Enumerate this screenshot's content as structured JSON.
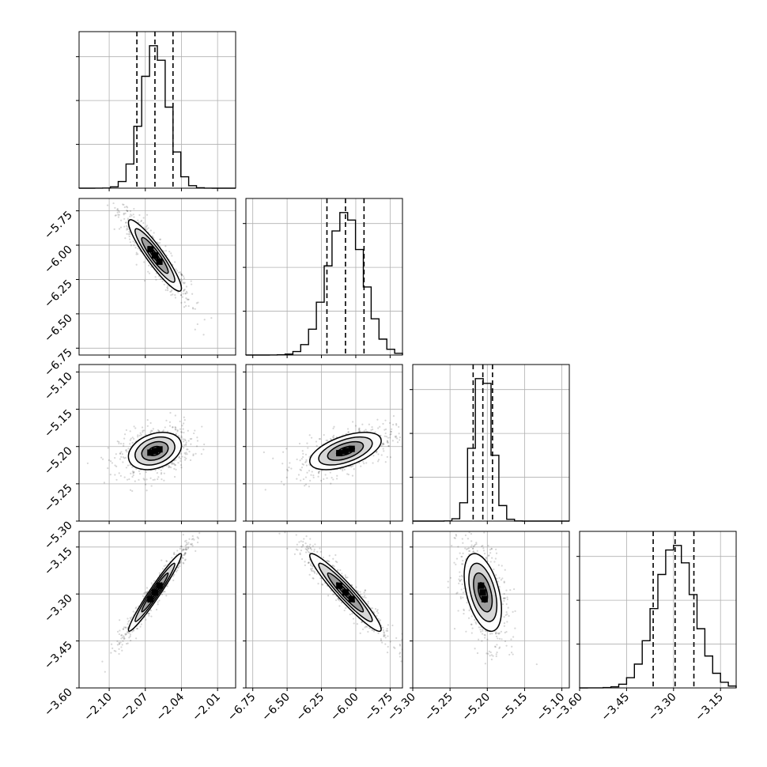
{
  "chart_data": {
    "type": "corner",
    "parameters": [
      {
        "range": [
          -2.125,
          -1.995
        ],
        "ticks": [
          -2.1,
          -2.07,
          -2.04,
          -2.01
        ],
        "tick_labels": [
          "−2.10",
          "−2.07",
          "−2.04",
          "−2.01"
        ],
        "quantiles": [
          -2.077,
          -2.062,
          -2.047
        ],
        "mean": -2.062,
        "sd": 0.011
      },
      {
        "range": [
          -6.8,
          -5.66
        ],
        "ticks": [
          -6.75,
          -6.5,
          -6.25,
          -6.0,
          -5.75
        ],
        "tick_labels": [
          "−6.75",
          "−6.50",
          "−6.25",
          "−6.00",
          "−5.75"
        ],
        "quantiles": [
          -6.21,
          -6.075,
          -5.94
        ],
        "mean": -6.075,
        "sd": 0.13
      },
      {
        "range": [
          -5.3,
          -5.09
        ],
        "ticks": [
          -5.3,
          -5.25,
          -5.2,
          -5.15,
          -5.1
        ],
        "tick_labels": [
          "−5.30",
          "−5.25",
          "−5.20",
          "−5.15",
          "−5.10"
        ],
        "quantiles": [
          -5.219,
          -5.206,
          -5.193
        ],
        "mean": -5.206,
        "sd": 0.0125
      },
      {
        "range": [
          -3.6,
          -3.1
        ],
        "ticks": [
          -3.6,
          -3.45,
          -3.3,
          -3.15
        ],
        "tick_labels": [
          "−3.60",
          "−3.45",
          "−3.30",
          "−3.15"
        ],
        "quantiles": [
          -3.365,
          -3.295,
          -3.235
        ],
        "mean": -3.295,
        "sd": 0.062
      }
    ],
    "correlations": [
      [
        1.0,
        -0.92,
        0.3,
        0.97
      ],
      [
        -0.92,
        1.0,
        0.55,
        -0.95
      ],
      [
        0.3,
        0.55,
        1.0,
        -0.45
      ],
      [
        0.97,
        -0.95,
        -0.45,
        1.0
      ]
    ],
    "histogram_bins": 20,
    "contour_levels_sigma": [
      0.5,
      1.0,
      1.5,
      2.0
    ],
    "grid": true,
    "quantile_line_style": "dashed",
    "colors": {
      "ink": "#000000",
      "grid": "#b0b0b0",
      "scatter": "#000000",
      "background": "#ffffff"
    }
  }
}
